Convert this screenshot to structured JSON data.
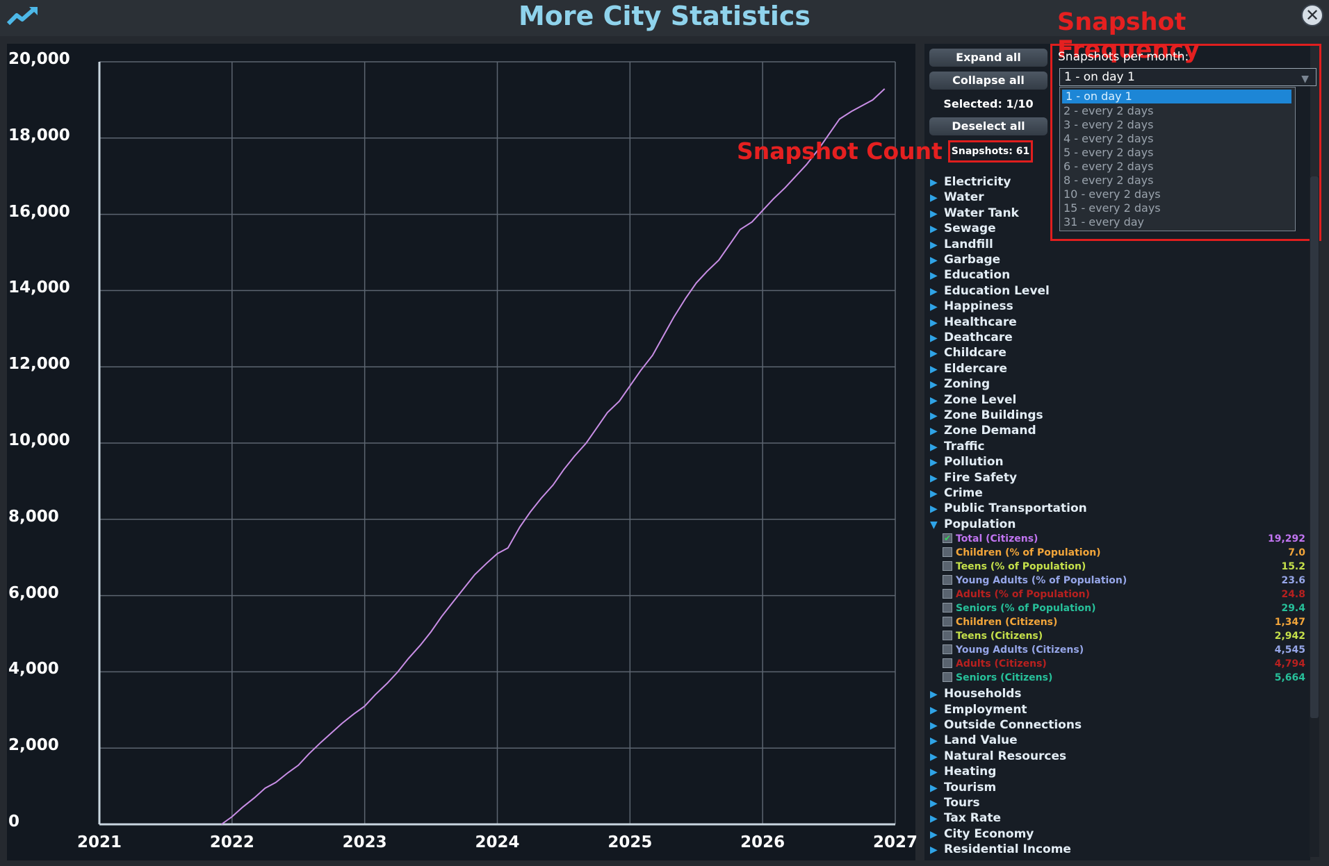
{
  "window": {
    "title": "More City Statistics"
  },
  "colors": {
    "accent_title": "#8fd3ec",
    "annotation_red": "#e52020",
    "line_total": "#c98ee6"
  },
  "annotations": {
    "snapshot_frequency": "Snapshot Frequency",
    "snapshot_count": "Snapshot Count"
  },
  "controls": {
    "expand_all": "Expand all",
    "collapse_all": "Collapse all",
    "selected": "Selected: 1/10",
    "deselect_all": "Deselect all",
    "snapshots": "Snapshots: 61"
  },
  "frequency": {
    "label": "Snapshots per month:",
    "selected": "1 - on day 1",
    "options": [
      "1 - on day 1",
      "2 - every 2 days",
      "3 - every 2 days",
      "4 - every 2 days",
      "5 - every 2 days",
      "6 - every 2 days",
      "8 - every 2 days",
      "10 - every 2 days",
      "15 - every 2 days",
      "31 - every day"
    ]
  },
  "categories_before": [
    "Electricity",
    "Water",
    "Water Tank",
    "Sewage",
    "Landfill",
    "Garbage",
    "Education",
    "Education Level",
    "Happiness",
    "Healthcare",
    "Deathcare",
    "Childcare",
    "Eldercare",
    "Zoning",
    "Zone Level",
    "Zone Buildings",
    "Zone Demand",
    "Traffic",
    "Pollution",
    "Fire Safety",
    "Crime",
    "Public Transportation"
  ],
  "population": {
    "label": "Population",
    "items": [
      {
        "label": "Total (Citizens)",
        "value": "19,292",
        "color": "#c074f0",
        "checked": true
      },
      {
        "label": "Children (% of Population)",
        "value": "7.0",
        "color": "#f2a53a",
        "checked": false
      },
      {
        "label": "Teens (% of Population)",
        "value": "15.2",
        "color": "#c5e04a",
        "checked": false
      },
      {
        "label": "Young Adults (% of Population)",
        "value": "23.6",
        "color": "#96a6e8",
        "checked": false
      },
      {
        "label": "Adults (% of Population)",
        "value": "24.8",
        "color": "#b8201f",
        "checked": false
      },
      {
        "label": "Seniors (% of Population)",
        "value": "29.4",
        "color": "#27c09a",
        "checked": false
      },
      {
        "label": "Children (Citizens)",
        "value": "1,347",
        "color": "#f2a53a",
        "checked": false
      },
      {
        "label": "Teens (Citizens)",
        "value": "2,942",
        "color": "#c5e04a",
        "checked": false
      },
      {
        "label": "Young Adults (Citizens)",
        "value": "4,545",
        "color": "#96a6e8",
        "checked": false
      },
      {
        "label": "Adults (Citizens)",
        "value": "4,794",
        "color": "#b8201f",
        "checked": false
      },
      {
        "label": "Seniors (Citizens)",
        "value": "5,664",
        "color": "#27c09a",
        "checked": false
      }
    ]
  },
  "categories_after": [
    "Households",
    "Employment",
    "Outside Connections",
    "Land Value",
    "Natural Resources",
    "Heating",
    "Tourism",
    "Tours",
    "Tax Rate",
    "City Economy",
    "Residential Income"
  ],
  "chart_data": {
    "type": "line",
    "x_ticks": [
      "2021",
      "2022",
      "2023",
      "2024",
      "2025",
      "2026",
      "2027"
    ],
    "y_ticks": [
      "0",
      "2,000",
      "4,000",
      "6,000",
      "8,000",
      "10,000",
      "12,000",
      "14,000",
      "16,000",
      "18,000",
      "20,000"
    ],
    "xlim": [
      2021,
      2027
    ],
    "ylim": [
      0,
      20000
    ],
    "grid": true,
    "series": [
      {
        "name": "Total (Citizens)",
        "color": "#c98ee6",
        "x": [
          2021.92,
          2022.0,
          2022.08,
          2022.17,
          2022.25,
          2022.33,
          2022.42,
          2022.5,
          2022.58,
          2022.67,
          2022.75,
          2022.83,
          2022.92,
          2023.0,
          2023.08,
          2023.17,
          2023.25,
          2023.33,
          2023.42,
          2023.5,
          2023.58,
          2023.67,
          2023.75,
          2023.83,
          2023.92,
          2024.0,
          2024.08,
          2024.17,
          2024.25,
          2024.33,
          2024.42,
          2024.5,
          2024.58,
          2024.67,
          2024.75,
          2024.83,
          2024.92,
          2025.0,
          2025.08,
          2025.17,
          2025.25,
          2025.33,
          2025.42,
          2025.5,
          2025.58,
          2025.67,
          2025.75,
          2025.83,
          2025.92,
          2026.0,
          2026.08,
          2026.17,
          2026.25,
          2026.33,
          2026.42,
          2026.5,
          2026.58,
          2026.67,
          2026.75,
          2026.83,
          2026.92
        ],
        "y": [
          0,
          200,
          450,
          700,
          950,
          1100,
          1350,
          1550,
          1850,
          2150,
          2400,
          2650,
          2900,
          3100,
          3400,
          3700,
          4000,
          4350,
          4700,
          5050,
          5450,
          5850,
          6200,
          6550,
          6850,
          7100,
          7250,
          7800,
          8200,
          8550,
          8900,
          9300,
          9650,
          10000,
          10400,
          10800,
          11100,
          11500,
          11900,
          12300,
          12800,
          13300,
          13800,
          14200,
          14500,
          14800,
          15200,
          15600,
          15800,
          16100,
          16400,
          16700,
          17000,
          17300,
          17700,
          18100,
          18500,
          18700,
          18850,
          19000,
          19292
        ]
      }
    ]
  }
}
